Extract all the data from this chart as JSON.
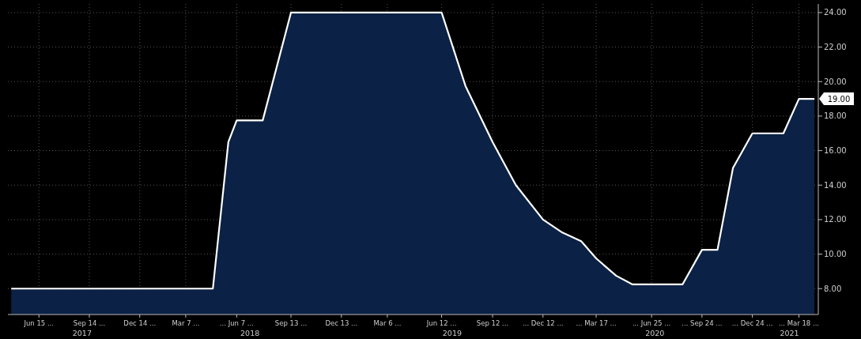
{
  "chart_data": {
    "type": "area",
    "x": [
      "2017-04-26",
      "2018-04-25",
      "2018-05-23",
      "2018-06-07",
      "2018-07-24",
      "2018-09-13",
      "2019-06-12",
      "2019-07-25",
      "2019-09-12",
      "2019-10-24",
      "2019-12-12",
      "2020-01-16",
      "2020-02-19",
      "2020-03-17",
      "2020-04-22",
      "2020-05-21",
      "2020-08-20",
      "2020-09-24",
      "2020-10-22",
      "2020-11-19",
      "2020-12-24",
      "2021-02-18",
      "2021-03-18",
      "2021-04-15"
    ],
    "series": [
      {
        "color": "#ffffff",
        "values": [
          8,
          8,
          16.5,
          17.75,
          17.75,
          24,
          24,
          19.75,
          16.5,
          14,
          12,
          11.25,
          10.75,
          9.75,
          8.75,
          8.25,
          8.25,
          10.25,
          10.25,
          15,
          17,
          17,
          19,
          19
        ],
        "value_labels": [
          null,
          null,
          null,
          null,
          null,
          null,
          null,
          null,
          null,
          null,
          null,
          null,
          null,
          null,
          null,
          null,
          null,
          null,
          null,
          null,
          null,
          null,
          null,
          "19.00"
        ]
      }
    ],
    "xlim": [
      "2017-04-20",
      "2021-04-22"
    ],
    "xticks": [
      {
        "value": "2017-06-15",
        "label": "Jun 15 ..."
      },
      {
        "value": "2017-09-14",
        "label": "Sep 14 ..."
      },
      {
        "value": "2017-12-14",
        "label": "Dec 14 ..."
      },
      {
        "value": "2018-03-07",
        "label": "Mar 7 ..."
      },
      {
        "value": "2018-06-07",
        "label": "... Jun 7 ..."
      },
      {
        "value": "2018-09-13",
        "label": "Sep 13 ..."
      },
      {
        "value": "2018-12-13",
        "label": "Dec 13 ..."
      },
      {
        "value": "2019-03-06",
        "label": "Mar 6 ..."
      },
      {
        "value": "2019-06-12",
        "label": "Jun 12 ..."
      },
      {
        "value": "2019-09-12",
        "label": "Sep 12 ..."
      },
      {
        "value": "2019-12-12",
        "label": "... Dec 12 ..."
      },
      {
        "value": "2020-03-17",
        "label": "... Mar 17 ..."
      },
      {
        "value": "2020-06-25",
        "label": "... Jun 25 ..."
      },
      {
        "value": "2020-09-24",
        "label": "... Sep 24 ..."
      },
      {
        "value": "2020-12-24",
        "label": "... Dec 24 ..."
      },
      {
        "value": "2021-03-18",
        "label": "... Mar 18 ..."
      }
    ],
    "x2lim": [
      "2017-04-20",
      "2021-04-22"
    ],
    "x2ticks": [
      {
        "value": "2017-09-01",
        "label": "2017"
      },
      {
        "value": "2018-07-01",
        "label": "2018"
      },
      {
        "value": "2019-07-01",
        "label": "2019"
      },
      {
        "value": "2020-07-01",
        "label": "2020"
      },
      {
        "value": "2021-03-01",
        "label": "2021"
      }
    ],
    "ylim": [
      6.5,
      24.5
    ],
    "yticks": [
      {
        "value": 8,
        "label": "8.00"
      },
      {
        "value": 10,
        "label": "10.00"
      },
      {
        "value": 12,
        "label": "12.00"
      },
      {
        "value": 14,
        "label": "14.00"
      },
      {
        "value": 16,
        "label": "16.00"
      },
      {
        "value": 18,
        "label": "18.00"
      },
      {
        "value": 20,
        "label": "20.00"
      },
      {
        "value": 22,
        "label": "22.00"
      },
      {
        "value": 24,
        "label": "24.00"
      }
    ],
    "grid": true,
    "line_style": "solid"
  }
}
